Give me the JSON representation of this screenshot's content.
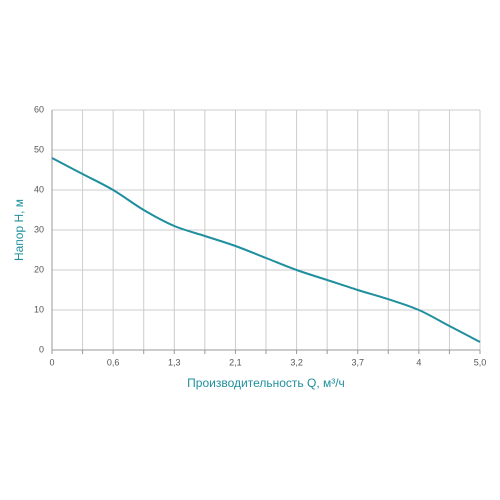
{
  "chart_data": {
    "type": "line",
    "x_label": "Производительность Q, м³/ч",
    "y_label": "Напор Н, м",
    "categories": [
      "0",
      null,
      "0,6",
      null,
      "1,3",
      null,
      "2,1",
      null,
      "3,2",
      null,
      "3,7",
      null,
      "4",
      null,
      "5,0"
    ],
    "values": [
      48,
      44,
      40,
      35,
      31,
      28.5,
      26,
      23,
      20,
      17.5,
      15,
      12.7,
      10,
      6,
      2
    ],
    "color": "#1f8f9f",
    "ylim": [
      0,
      60
    ],
    "yticks": [
      0,
      10,
      20,
      30,
      40,
      50,
      60
    ],
    "grid": true
  }
}
